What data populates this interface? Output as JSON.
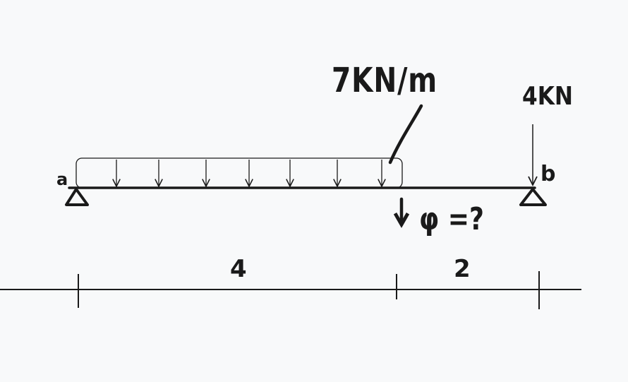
{
  "diagram": {
    "distributed_load_label": "7KN/m",
    "point_load_label": "4KN",
    "support_a_label": "a",
    "support_b_label": "b",
    "unknown_label": "φ =?",
    "dimension_labels": [
      "4",
      "2"
    ],
    "distributed_load_arrow_count": 7
  },
  "colors": {
    "background": "#f8f9fa",
    "ink": "#1a1a1a"
  }
}
